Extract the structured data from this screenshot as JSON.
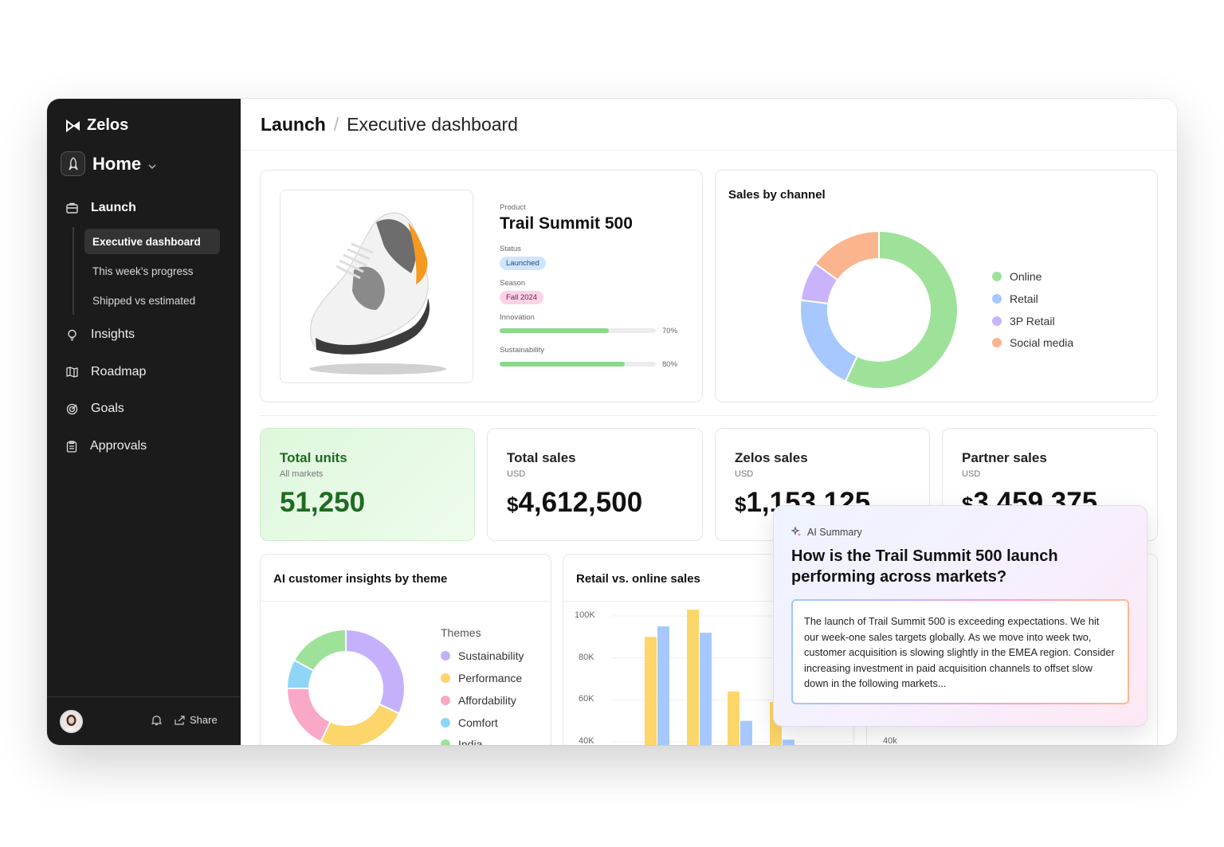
{
  "app": {
    "name": "Zelos"
  },
  "sidebar": {
    "workspace": "Home",
    "nav": [
      {
        "label": "Launch",
        "icon": "briefcase-icon"
      },
      {
        "label": "Insights",
        "icon": "lightbulb-icon"
      },
      {
        "label": "Roadmap",
        "icon": "map-icon"
      },
      {
        "label": "Goals",
        "icon": "target-icon"
      },
      {
        "label": "Approvals",
        "icon": "clipboard-icon"
      }
    ],
    "sub_items": [
      {
        "label": "Executive dashboard",
        "active": true
      },
      {
        "label": "This week’s progress",
        "active": false
      },
      {
        "label": "Shipped vs estimated",
        "active": false
      }
    ],
    "footer": {
      "share_label": "Share"
    }
  },
  "header": {
    "crumb_parent": "Launch",
    "crumb_current": "Executive dashboard"
  },
  "product": {
    "product_label": "Product",
    "name": "Trail Summit 500",
    "status_label": "Status",
    "status": "Launched",
    "season_label": "Season",
    "season": "Fall 2024",
    "innovation_label": "Innovation",
    "innovation_pct": 70,
    "innovation_text": "70%",
    "sustainability_label": "Sustainability",
    "sustainability_pct": 80,
    "sustainability_text": "80%"
  },
  "sales_by_channel": {
    "title": "Sales by channel",
    "legend": [
      {
        "label": "Online",
        "color": "#9ee29a",
        "value": 57
      },
      {
        "label": "Retail",
        "color": "#a6c8ff",
        "value": 20
      },
      {
        "label": "3P Retail",
        "color": "#c9b3fb",
        "value": 8
      },
      {
        "label": "Social media",
        "color": "#fbb58e",
        "value": 15
      }
    ]
  },
  "stats": {
    "total_units": {
      "title": "Total units",
      "sub": "All markets",
      "value": "51,250"
    },
    "total_sales": {
      "title": "Total sales",
      "sub": "USD",
      "currency": "$",
      "value": "4,612,500"
    },
    "zelos_sales": {
      "title": "Zelos sales",
      "sub": "USD",
      "currency": "$",
      "value": "1,153,125"
    },
    "partner_sales": {
      "title": "Partner sales",
      "sub": "USD",
      "currency": "$",
      "value": "3,459,375"
    }
  },
  "insights": {
    "title": "AI customer insights by theme",
    "legend_title": "Themes",
    "themes": [
      {
        "label": "Sustainability",
        "color": "#c5b1fb",
        "value": 32
      },
      {
        "label": "Performance",
        "color": "#fcd66a",
        "value": 25
      },
      {
        "label": "Affordability",
        "color": "#f9a8c7",
        "value": 18
      },
      {
        "label": "Comfort",
        "color": "#8ed5f7",
        "value": 8
      },
      {
        "label": "India",
        "color": "#9ee29a",
        "value": 17
      }
    ]
  },
  "retail_online": {
    "title": "Retail vs. online sales",
    "y_ticks": [
      "100K",
      "80K",
      "60K",
      "40K"
    ],
    "second_chart_tick": "40k"
  },
  "chart_data": {
    "type": "bar",
    "title": "Retail vs. online sales",
    "ylim": [
      40000,
      100000
    ],
    "y_ticks": [
      "100K",
      "80K",
      "60K",
      "40K"
    ],
    "series": [
      {
        "color": "#fcd66a",
        "values": [
          90000,
          103000,
          64000,
          59000
        ]
      },
      {
        "color": "#a6c8ff",
        "values": [
          95000,
          92000,
          50000,
          41000
        ]
      }
    ]
  },
  "ai_summary": {
    "tag": "AI Summary",
    "question": "How is the Trail Summit 500 launch performing across markets?",
    "answer": "The launch of Trail Summit 500 is exceeding expectations. We hit our week-one sales targets globally. As we move into week two, customer acquisition is slowing slightly in the EMEA region. Consider increasing investment in paid acquisition channels to offset slow down in the following markets..."
  }
}
